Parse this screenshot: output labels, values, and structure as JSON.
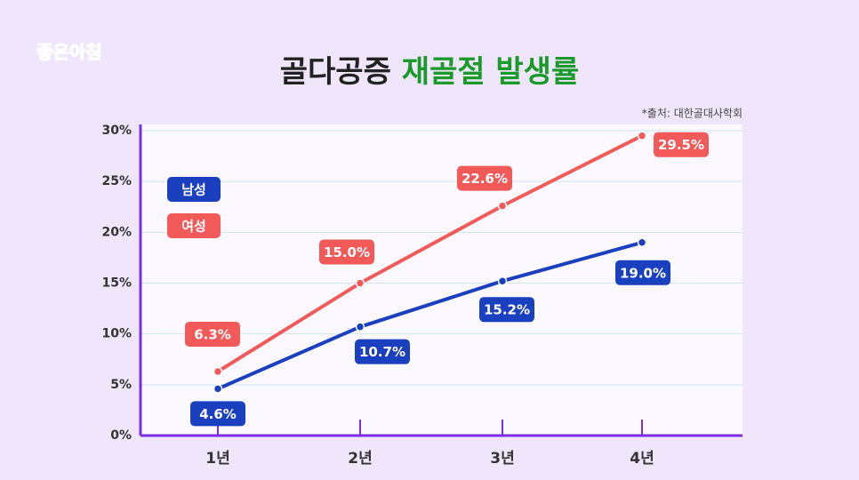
{
  "logo": "좋은아침",
  "chart_data": {
    "type": "line",
    "title": [
      "골다공증",
      "재골절 발생률"
    ],
    "source": "*출처: 대한골대사학회",
    "categories": [
      "1년",
      "2년",
      "3년",
      "4년"
    ],
    "series": [
      {
        "name": "남성",
        "color": "#1a3fbf",
        "values": [
          4.6,
          10.7,
          15.2,
          19.0
        ],
        "value_labels": [
          "4.6%",
          "10.7%",
          "15.2%",
          "19.0%"
        ]
      },
      {
        "name": "여성",
        "color": "#f25a5a",
        "values": [
          6.3,
          15.0,
          22.6,
          29.5
        ],
        "value_labels": [
          "6.3%",
          "15.0%",
          "22.6%",
          "29.5%"
        ]
      }
    ],
    "ylim": [
      0,
      30
    ],
    "yticks": [
      {
        "value": 0,
        "label": "0%"
      },
      {
        "value": 5,
        "label": "5%"
      },
      {
        "value": 10,
        "label": "10%"
      },
      {
        "value": 15,
        "label": "15%"
      },
      {
        "value": 20,
        "label": "20%"
      },
      {
        "value": 25,
        "label": "25%"
      },
      {
        "value": 30,
        "label": "30%"
      }
    ],
    "grid": true
  }
}
